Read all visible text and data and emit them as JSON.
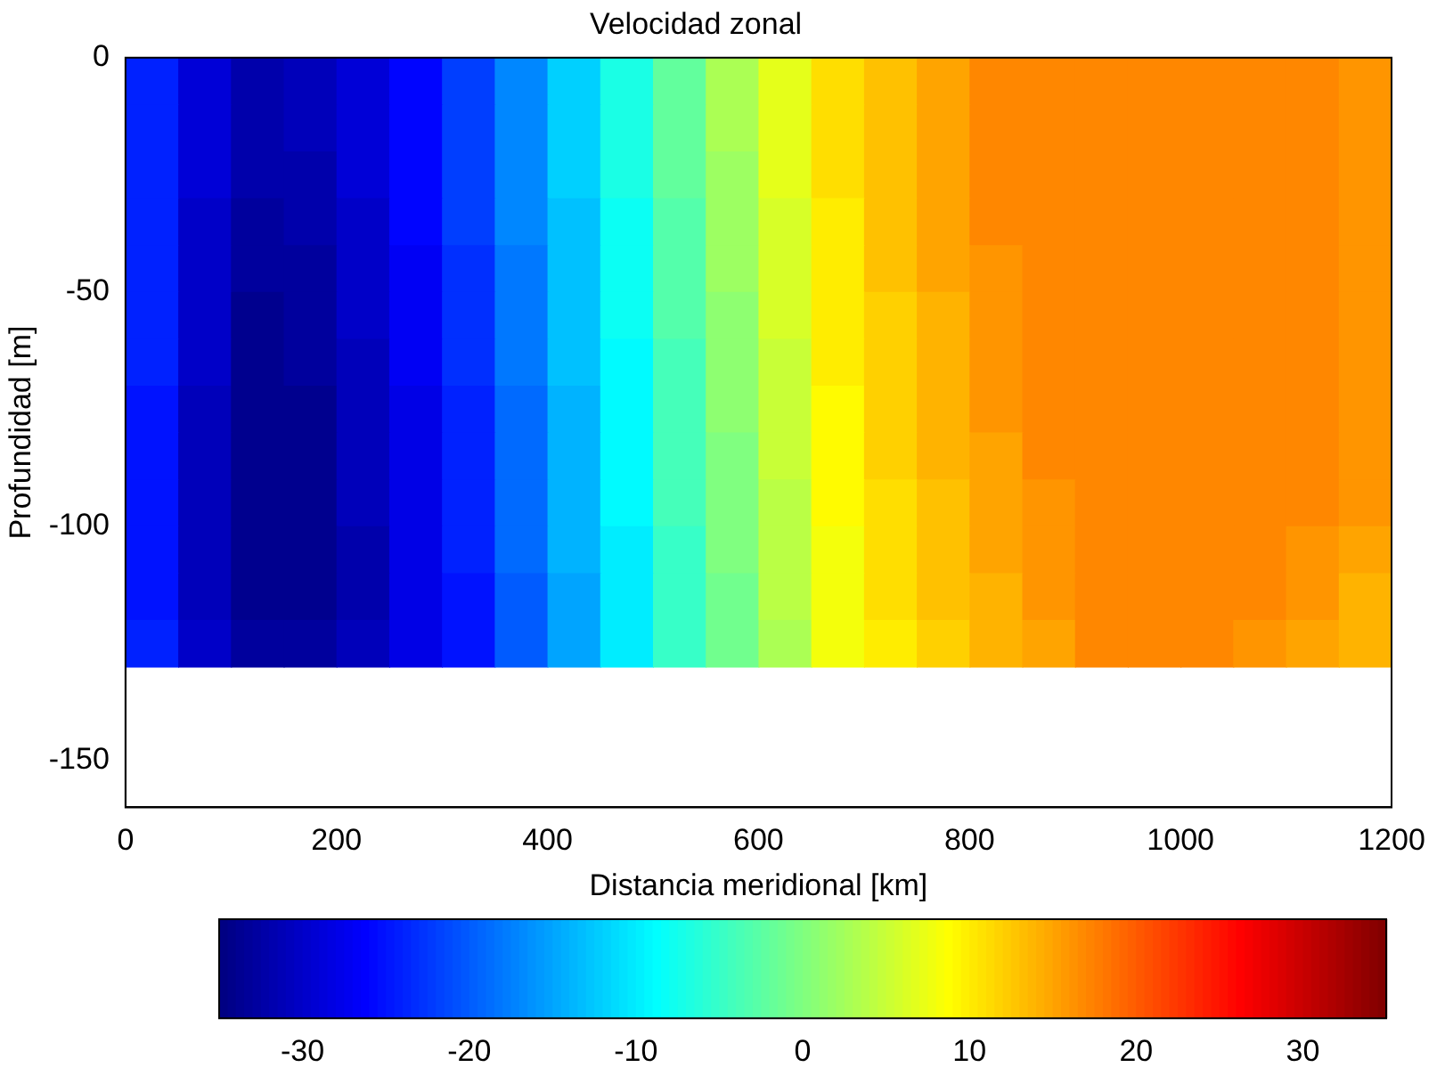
{
  "chart_data": {
    "type": "heatmap",
    "title": "Velocidad zonal",
    "xlabel": "Distancia meridional [km]",
    "ylabel": "Profundidad [m]",
    "x": [
      25,
      75,
      125,
      175,
      225,
      275,
      325,
      375,
      425,
      475,
      525,
      575,
      625,
      675,
      725,
      775,
      825,
      875,
      925,
      975,
      1025,
      1075,
      1125,
      1175
    ],
    "y": [
      -5,
      -15,
      -25,
      -35,
      -45,
      -55,
      -65,
      -75,
      -85,
      -95,
      -105,
      -115,
      -125
    ],
    "xlim": [
      0,
      1200
    ],
    "xticks": [
      0,
      200,
      400,
      600,
      800,
      1000,
      1200
    ],
    "ylim": [
      -160,
      0
    ],
    "yticks": [
      -150,
      -100,
      -50,
      0
    ],
    "clim": [
      -35,
      35
    ],
    "cticks": [
      -30,
      -20,
      -10,
      0,
      10,
      20,
      30
    ],
    "grid": false,
    "cells": [
      [
        -24,
        -29,
        -32,
        -31,
        -29,
        -26,
        -22,
        -17,
        -12,
        -7,
        -2,
        3,
        7,
        11,
        13,
        15,
        17,
        17,
        17,
        17,
        17,
        17,
        17,
        16
      ],
      [
        -24,
        -29,
        -32,
        -31,
        -29,
        -26,
        -22,
        -17,
        -12,
        -7,
        -2,
        3,
        7,
        11,
        13,
        15,
        17,
        17,
        17,
        17,
        17,
        17,
        17,
        16
      ],
      [
        -24,
        -29,
        -32,
        -32,
        -29,
        -26,
        -22,
        -17,
        -12,
        -7,
        -2,
        2,
        7,
        11,
        13,
        15,
        17,
        17,
        17,
        17,
        17,
        17,
        17,
        16
      ],
      [
        -24,
        -30,
        -33,
        -32,
        -30,
        -26,
        -22,
        -17,
        -13,
        -8,
        -3,
        2,
        6,
        10,
        13,
        15,
        17,
        17,
        17,
        17,
        17,
        17,
        17,
        16
      ],
      [
        -24,
        -30,
        -33,
        -33,
        -30,
        -27,
        -23,
        -18,
        -13,
        -8,
        -3,
        2,
        6,
        10,
        13,
        15,
        16,
        17,
        17,
        17,
        17,
        17,
        17,
        16
      ],
      [
        -24,
        -30,
        -34,
        -33,
        -30,
        -27,
        -23,
        -18,
        -13,
        -8,
        -3,
        1,
        6,
        10,
        12,
        14,
        16,
        17,
        17,
        17,
        17,
        17,
        17,
        16
      ],
      [
        -24,
        -30,
        -34,
        -33,
        -31,
        -27,
        -23,
        -18,
        -13,
        -9,
        -4,
        1,
        5,
        10,
        12,
        14,
        16,
        17,
        17,
        17,
        17,
        17,
        17,
        16
      ],
      [
        -25,
        -31,
        -34,
        -34,
        -31,
        -28,
        -24,
        -19,
        -14,
        -9,
        -4,
        1,
        5,
        9,
        12,
        14,
        16,
        17,
        17,
        17,
        17,
        17,
        17,
        16
      ],
      [
        -25,
        -31,
        -34,
        -34,
        -31,
        -28,
        -24,
        -19,
        -14,
        -9,
        -4,
        0,
        5,
        9,
        12,
        14,
        15,
        17,
        17,
        17,
        17,
        17,
        17,
        16
      ],
      [
        -25,
        -31,
        -34,
        -34,
        -31,
        -28,
        -24,
        -19,
        -14,
        -9,
        -4,
        0,
        4,
        9,
        11,
        13,
        15,
        16,
        17,
        17,
        17,
        17,
        17,
        16
      ],
      [
        -25,
        -31,
        -34,
        -34,
        -32,
        -28,
        -24,
        -19,
        -14,
        -10,
        -5,
        0,
        4,
        8,
        11,
        13,
        15,
        16,
        17,
        17,
        17,
        17,
        16,
        15
      ],
      [
        -25,
        -31,
        -34,
        -34,
        -32,
        -28,
        -25,
        -20,
        -15,
        -10,
        -5,
        -1,
        4,
        8,
        11,
        13,
        14,
        16,
        17,
        17,
        17,
        17,
        16,
        14
      ],
      [
        -24,
        -30,
        -33,
        -33,
        -31,
        -28,
        -25,
        -20,
        -15,
        -10,
        -5,
        -1,
        3,
        8,
        10,
        12,
        14,
        15,
        17,
        17,
        17,
        16,
        15,
        14
      ]
    ]
  }
}
